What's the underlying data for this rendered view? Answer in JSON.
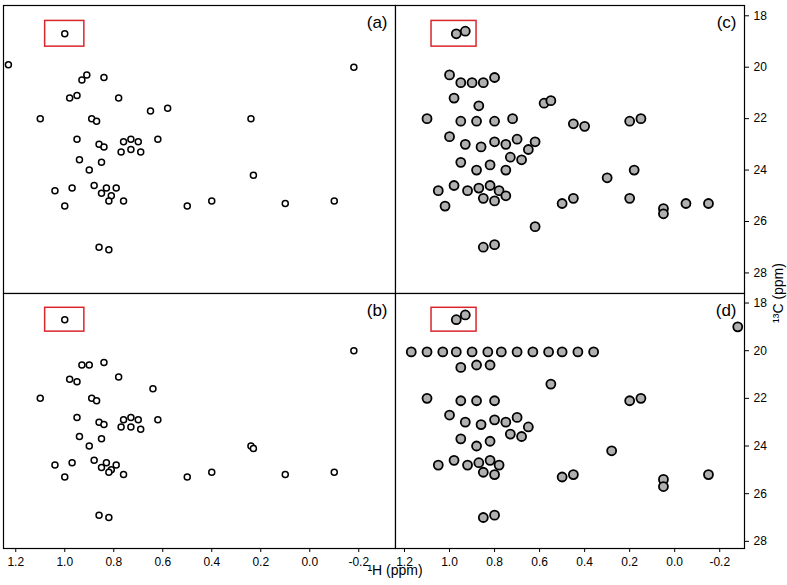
{
  "chart_data": [
    {
      "type": "scatter",
      "title": "(a)",
      "marker": "circle",
      "color": "#000000",
      "tick_labels": false,
      "xlim": [
        1.25,
        -0.35
      ],
      "ylim": [
        17.6,
        28.8
      ],
      "x": [
        1.0,
        1.23,
        -0.18,
        0.93,
        0.91,
        0.84,
        0.95,
        0.98,
        0.78,
        0.58,
        1.1,
        0.89,
        0.87,
        0.65,
        0.24,
        0.95,
        0.86,
        0.84,
        0.76,
        0.73,
        0.7,
        0.77,
        0.73,
        0.69,
        0.62,
        0.94,
        0.9,
        0.85,
        0.88,
        0.83,
        0.79,
        0.85,
        0.81,
        0.82,
        0.76,
        1.04,
        0.97,
        1.0,
        0.5,
        0.4,
        0.23,
        0.1,
        -0.1,
        0.86,
        0.82
      ],
      "values": [
        18.7,
        19.9,
        20.0,
        20.5,
        20.3,
        20.4,
        21.1,
        21.2,
        21.2,
        21.6,
        22.0,
        22.0,
        22.1,
        21.7,
        22.0,
        22.8,
        23.0,
        23.1,
        22.9,
        22.8,
        22.9,
        23.3,
        23.2,
        23.3,
        22.8,
        23.6,
        24.0,
        23.7,
        24.6,
        24.7,
        24.7,
        24.9,
        25.0,
        25.2,
        25.2,
        24.8,
        24.7,
        25.4,
        25.4,
        25.2,
        24.2,
        25.3,
        25.2,
        27.0,
        27.1
      ],
      "highlight_box": {
        "xlim": [
          1.08,
          0.92
        ],
        "ylim": [
          18.2,
          19.2
        ],
        "color": "#d9262b"
      }
    },
    {
      "type": "scatter",
      "title": "(b)",
      "marker": "circle",
      "color": "#000000",
      "tick_labels": "x",
      "x_label": "¹H (ppm)",
      "xlim": [
        1.25,
        -0.35
      ],
      "ylim": [
        17.6,
        28.3
      ],
      "xticks": [
        1.2,
        {
          "value": 1,
          "label": "1.0"
        },
        0.8,
        0.6,
        0.4,
        0.2,
        {
          "value": 0,
          "label": "0.0"
        },
        -0.2
      ],
      "x": [
        1.0,
        -0.18,
        0.93,
        0.9,
        0.84,
        0.95,
        0.98,
        0.78,
        0.64,
        1.1,
        0.89,
        0.87,
        0.24,
        0.95,
        0.86,
        0.84,
        0.76,
        0.73,
        0.7,
        0.77,
        0.73,
        0.69,
        0.62,
        0.94,
        0.9,
        0.85,
        0.88,
        0.83,
        0.79,
        0.85,
        0.81,
        0.82,
        0.76,
        1.04,
        0.97,
        1.0,
        0.5,
        0.4,
        0.23,
        0.1,
        -0.1,
        0.86,
        0.82
      ],
      "values": [
        18.7,
        20.0,
        20.6,
        20.6,
        20.5,
        21.3,
        21.2,
        21.1,
        21.6,
        22.0,
        22.0,
        22.1,
        24.0,
        22.8,
        23.0,
        23.1,
        22.9,
        22.8,
        22.9,
        23.2,
        23.2,
        23.3,
        22.9,
        23.6,
        24.0,
        23.7,
        24.6,
        24.7,
        24.8,
        24.9,
        25.0,
        25.1,
        25.2,
        24.8,
        24.7,
        25.3,
        25.3,
        25.1,
        24.1,
        25.2,
        25.1,
        26.9,
        27.0
      ],
      "highlight_box": {
        "xlim": [
          1.08,
          0.92
        ],
        "ylim": [
          18.2,
          19.2
        ],
        "color": "#d9262b"
      }
    },
    {
      "type": "scatter",
      "title": "(c)",
      "marker": "circle",
      "color": "#000000",
      "tick_labels": "y",
      "y_label": "¹³C (ppm)",
      "xlim": [
        1.24,
        -0.31
      ],
      "ylim": [
        17.6,
        28.8
      ],
      "yticks": [
        18,
        20,
        22,
        24,
        26,
        28
      ],
      "x": [
        0.97,
        0.93,
        1.0,
        0.95,
        0.9,
        0.85,
        0.8,
        0.58,
        0.55,
        0.98,
        0.87,
        1.1,
        0.95,
        0.88,
        0.8,
        0.72,
        0.45,
        0.4,
        0.2,
        0.15,
        1.0,
        0.93,
        0.86,
        0.8,
        0.75,
        0.7,
        0.65,
        0.73,
        0.68,
        0.62,
        0.95,
        0.88,
        0.82,
        0.75,
        0.3,
        0.18,
        1.05,
        0.98,
        0.92,
        0.87,
        0.82,
        0.78,
        0.85,
        0.8,
        0.75,
        1.02,
        0.5,
        0.45,
        0.05,
        0.05,
        -0.05,
        -0.15,
        0.2,
        0.62,
        0.85,
        0.8
      ],
      "values": [
        18.7,
        18.6,
        20.3,
        20.6,
        20.6,
        20.6,
        20.4,
        21.4,
        21.3,
        21.2,
        21.5,
        22.0,
        22.1,
        22.1,
        22.1,
        22.0,
        22.2,
        22.3,
        22.1,
        22.0,
        22.7,
        23.0,
        23.1,
        22.9,
        23.0,
        22.8,
        23.2,
        23.5,
        23.6,
        22.9,
        23.7,
        24.0,
        23.8,
        24.0,
        24.3,
        24.0,
        24.8,
        24.6,
        24.8,
        24.7,
        24.6,
        24.8,
        25.1,
        25.2,
        25.0,
        25.4,
        25.3,
        25.1,
        25.5,
        25.7,
        25.3,
        25.3,
        25.1,
        26.2,
        27.0,
        26.9
      ],
      "highlight_box": {
        "xlim": [
          1.08,
          0.88
        ],
        "ylim": [
          18.2,
          19.2
        ],
        "color": "#d9262b"
      }
    },
    {
      "type": "scatter",
      "title": "(d)",
      "marker": "circle",
      "color": "#000000",
      "xlim": [
        1.24,
        -0.31
      ],
      "ylim": [
        17.6,
        28.3
      ],
      "xticks": [
        1.2,
        {
          "value": 1,
          "label": "1.0"
        },
        0.8,
        0.6,
        0.4,
        0.2,
        {
          "value": 0,
          "label": "0.0"
        },
        -0.2
      ],
      "yticks": [
        18,
        20,
        22,
        24,
        26,
        28
      ],
      "x": [
        0.97,
        0.93,
        1.17,
        1.1,
        1.03,
        0.97,
        0.9,
        0.83,
        0.77,
        0.7,
        0.63,
        0.56,
        0.5,
        0.43,
        0.36,
        -0.28,
        0.95,
        0.88,
        0.82,
        0.55,
        1.1,
        0.95,
        0.88,
        0.8,
        0.2,
        0.15,
        1.0,
        0.93,
        0.86,
        0.8,
        0.75,
        0.7,
        0.65,
        0.73,
        0.68,
        0.95,
        0.88,
        0.82,
        0.28,
        1.05,
        0.98,
        0.92,
        0.87,
        0.82,
        0.78,
        0.85,
        0.8,
        0.5,
        0.45,
        0.05,
        0.05,
        -0.15,
        0.85,
        0.8
      ],
      "values": [
        18.7,
        18.5,
        20.05,
        20.05,
        20.05,
        20.05,
        20.05,
        20.05,
        20.05,
        20.05,
        20.05,
        20.05,
        20.05,
        20.05,
        20.05,
        19.0,
        20.7,
        20.6,
        20.6,
        21.4,
        22.0,
        22.1,
        22.1,
        22.1,
        22.1,
        22.0,
        22.7,
        23.0,
        23.1,
        22.9,
        23.0,
        22.8,
        23.2,
        23.5,
        23.6,
        23.7,
        24.0,
        23.8,
        24.2,
        24.8,
        24.6,
        24.8,
        24.7,
        24.6,
        24.8,
        25.1,
        25.2,
        25.3,
        25.2,
        25.4,
        25.7,
        25.2,
        27.0,
        26.9
      ],
      "highlight_box": {
        "xlim": [
          1.08,
          0.88
        ],
        "ylim": [
          18.2,
          19.2
        ],
        "color": "#d9262b"
      }
    }
  ]
}
